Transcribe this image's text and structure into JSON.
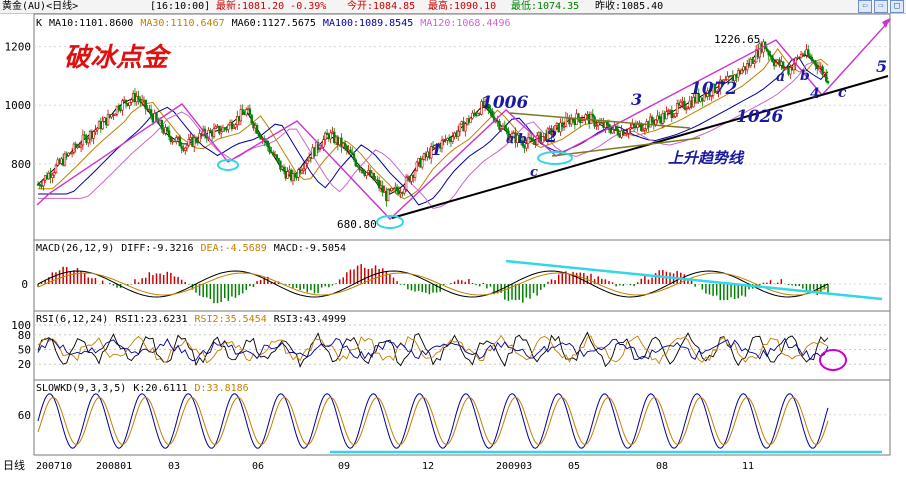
{
  "header": {
    "instrument": "黄金(AU)<日线>",
    "time": "[16:10:00]",
    "latest": "最新:1081.20 -0.39%",
    "open": "今开:1084.85",
    "high": "最高:1090.10",
    "low": "最低:1074.35",
    "prev_close": "昨收:1085.40"
  },
  "window_buttons": [
    "⇦",
    "⇨",
    "□"
  ],
  "legends": {
    "main": [
      {
        "text": "K",
        "color": "#000000"
      },
      {
        "text": "MA10:1101.8600",
        "color": "#000000"
      },
      {
        "text": "MA30:1110.6467",
        "color": "#c08000"
      },
      {
        "text": "MA60:1127.5675",
        "color": "#000000"
      },
      {
        "text": "MA100:1089.8545",
        "color": "#0000a0"
      },
      {
        "text": "MA120:1068.4496",
        "color": "#cc66cc"
      }
    ],
    "macd": [
      {
        "text": "MACD(26,12,9)",
        "color": "#000000"
      },
      {
        "text": "DIFF:-9.3216",
        "color": "#000000"
      },
      {
        "text": "DEA:-4.5689",
        "color": "#c08000"
      },
      {
        "text": "MACD:-9.5054",
        "color": "#000000"
      }
    ],
    "rsi": [
      {
        "text": "RSI(6,12,24)",
        "color": "#000000"
      },
      {
        "text": "RSI1:23.6231",
        "color": "#000000"
      },
      {
        "text": "RSI2:35.5454",
        "color": "#c08000"
      },
      {
        "text": "RSI3:43.4999",
        "color": "#000000"
      }
    ],
    "kd": [
      {
        "text": "SLOWKD(9,3,3,5)",
        "color": "#000000"
      },
      {
        "text": "K:20.6111",
        "color": "#000000"
      },
      {
        "text": "D:33.8186",
        "color": "#c08000"
      }
    ]
  },
  "chart_data": {
    "type": "candlestick",
    "price_axis_ticks": [
      "1200",
      "1000",
      "800"
    ],
    "macd_axis_ticks": [
      "0"
    ],
    "rsi_axis_ticks": [
      "100",
      "80",
      "50",
      "20"
    ],
    "kd_axis_ticks": [
      "60"
    ],
    "x_axis_label": "日线",
    "x_ticks": [
      "200710",
      "200801",
      "03",
      "06",
      "09",
      "12",
      "200903",
      "05",
      "08",
      "11"
    ],
    "price_path": [
      [
        0,
        730
      ],
      [
        12,
        800
      ],
      [
        25,
        880
      ],
      [
        40,
        960
      ],
      [
        45,
        1000
      ],
      [
        55,
        1030
      ],
      [
        60,
        990
      ],
      [
        72,
        900
      ],
      [
        82,
        860
      ],
      [
        92,
        900
      ],
      [
        104,
        920
      ],
      [
        116,
        980
      ],
      [
        122,
        920
      ],
      [
        128,
        860
      ],
      [
        136,
        780
      ],
      [
        142,
        750
      ],
      [
        150,
        820
      ],
      [
        162,
        900
      ],
      [
        170,
        860
      ],
      [
        178,
        800
      ],
      [
        188,
        740
      ],
      [
        194,
        690
      ],
      [
        203,
        720
      ],
      [
        212,
        800
      ],
      [
        222,
        860
      ],
      [
        232,
        900
      ],
      [
        240,
        950
      ],
      [
        248,
        1000
      ],
      [
        254,
        960
      ],
      [
        262,
        900
      ],
      [
        272,
        870
      ],
      [
        284,
        900
      ],
      [
        296,
        950
      ],
      [
        305,
        960
      ],
      [
        314,
        930
      ],
      [
        324,
        910
      ],
      [
        336,
        930
      ],
      [
        348,
        960
      ],
      [
        360,
        1000
      ],
      [
        372,
        1040
      ],
      [
        384,
        1080
      ],
      [
        396,
        1140
      ],
      [
        404,
        1210
      ],
      [
        410,
        1150
      ],
      [
        418,
        1120
      ],
      [
        426,
        1180
      ],
      [
        434,
        1140
      ],
      [
        440,
        1090
      ]
    ],
    "annotations": {
      "title": "破冰点金",
      "low_label": "680.80",
      "high_label": "1226.65",
      "wave_labels": [
        "1",
        "1006",
        "a",
        "b",
        "c",
        "2",
        "3",
        "1072",
        "1026",
        "a",
        "b",
        "4",
        "c",
        "5"
      ],
      "trendline_label": "上升趋势线"
    },
    "colors": {
      "up": "#cc0000",
      "down": "#008000",
      "zigzag": "#cc33cc",
      "annotation": "#1a1aa0",
      "cyan": "#33d6e8"
    }
  }
}
